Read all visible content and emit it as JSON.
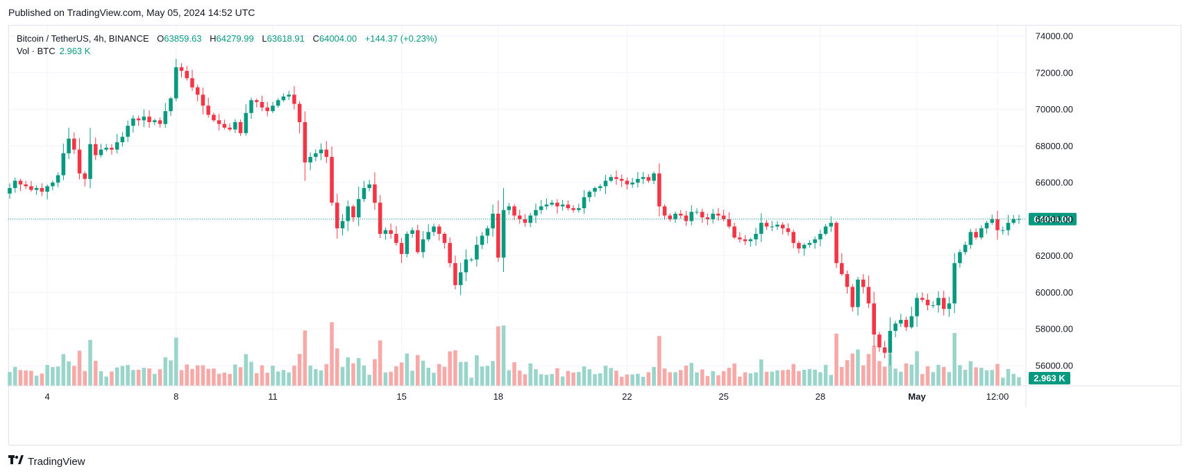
{
  "header": {
    "published": "Published on TradingView.com, May 05, 2024 14:52 UTC"
  },
  "legend": {
    "symbol": "Bitcoin / TetherUS, 4h, BINANCE",
    "open_label": "O",
    "open": "63859.63",
    "high_label": "H",
    "high": "64279.99",
    "low_label": "L",
    "low": "63618.91",
    "close_label": "C",
    "close": "64004.00",
    "change": "+144.37 (+0.23%)",
    "volume_label": "Vol · BTC",
    "volume_value": "2.963 K"
  },
  "brand": {
    "logo_icon": "tradingview-logo-icon",
    "name": "TradingView"
  },
  "colors": {
    "up": "#089981",
    "down": "#f23645",
    "up_vol": "#9ad5cc",
    "down_vol": "#f7a9a7",
    "grid": "#f0f3fa"
  },
  "chart_data": {
    "type": "candlestick",
    "title": "Bitcoin / TetherUS, 4h, BINANCE",
    "y_axis_ticks": [
      "74000.00",
      "72000.00",
      "70000.00",
      "68000.00",
      "66000.00",
      "64000.00",
      "62000.00",
      "60000.00",
      "58000.00",
      "56000.00"
    ],
    "ylim": [
      55000,
      75000
    ],
    "x_axis_ticks": [
      {
        "label": "4",
        "index": 7
      },
      {
        "label": "8",
        "index": 31
      },
      {
        "label": "11",
        "index": 49
      },
      {
        "label": "15",
        "index": 73
      },
      {
        "label": "18",
        "index": 91
      },
      {
        "label": "22",
        "index": 115
      },
      {
        "label": "25",
        "index": 133
      },
      {
        "label": "28",
        "index": 151
      },
      {
        "label": "May",
        "index": 169
      },
      {
        "label": "12:00",
        "index": 184
      }
    ],
    "last_price_label": "64004.00",
    "last_volume_label": "2.963 K",
    "grid": true,
    "closes": [
      65700,
      66100,
      65900,
      65800,
      65600,
      65700,
      65500,
      65800,
      66000,
      66400,
      67600,
      68400,
      67800,
      66500,
      66200,
      68100,
      67500,
      67800,
      67900,
      67800,
      68200,
      68500,
      69100,
      69500,
      69400,
      69600,
      69300,
      69400,
      69200,
      69900,
      70600,
      72300,
      72100,
      71700,
      71200,
      70800,
      70200,
      69700,
      69400,
      69200,
      69000,
      68900,
      69300,
      68700,
      69800,
      70500,
      70400,
      70100,
      69900,
      70200,
      70500,
      70700,
      70800,
      70300,
      69300,
      67100,
      67400,
      67600,
      67800,
      67400,
      64900,
      63500,
      63900,
      64700,
      64100,
      65100,
      65700,
      65900,
      64900,
      63200,
      63400,
      63200,
      62700,
      62100,
      63200,
      63400,
      62200,
      62900,
      63300,
      63600,
      63200,
      62700,
      61600,
      60400,
      61100,
      61800,
      61800,
      62600,
      63100,
      63500,
      64300,
      61900,
      64500,
      64700,
      64200,
      64000,
      63800,
      64200,
      64500,
      64700,
      64800,
      64900,
      64700,
      64800,
      64600,
      64500,
      64600,
      65200,
      65500,
      65700,
      65800,
      66100,
      66300,
      66200,
      66100,
      65900,
      66000,
      66200,
      66300,
      66100,
      66500,
      64700,
      64200,
      64000,
      64300,
      64200,
      63900,
      64400,
      64400,
      64100,
      64000,
      64300,
      64200,
      64000,
      63600,
      63000,
      62900,
      62800,
      62900,
      63200,
      63800,
      63600,
      63600,
      63700,
      63500,
      63300,
      62700,
      62400,
      62600,
      62700,
      62900,
      63200,
      63600,
      63800,
      61600,
      61000,
      60300,
      59200,
      60700,
      60300,
      59400,
      57700,
      57000,
      56700,
      57900,
      58300,
      58500,
      58100,
      58700,
      59700,
      59600,
      59300,
      59300,
      59700,
      59100,
      59400,
      61600,
      62200,
      62600,
      63300,
      63000,
      63500,
      63800,
      64000,
      63400,
      63400,
      63800,
      64000,
      64004
    ]
  }
}
